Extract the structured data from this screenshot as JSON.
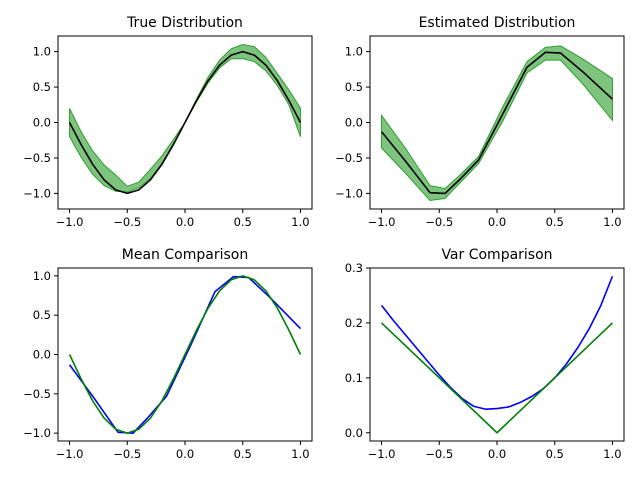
{
  "chart_data": [
    {
      "id": "true-distribution",
      "type": "line",
      "title": "True Distribution",
      "xlabel": "",
      "ylabel": "",
      "xlim": [
        -1.1,
        1.1
      ],
      "ylim": [
        -1.22,
        1.22
      ],
      "xticks": [
        -1.0,
        -0.5,
        0.0,
        0.5,
        1.0
      ],
      "yticks": [
        -1.0,
        -0.5,
        0.0,
        0.5,
        1.0
      ],
      "xtick_labels": [
        "−1.0",
        "−0.5",
        "0.0",
        "0.5",
        "1.0"
      ],
      "ytick_labels": [
        "−1.0",
        "−0.5",
        "0.0",
        "0.5",
        "1.0"
      ],
      "grid": false,
      "band": {
        "color": "#2e9e2e",
        "x": [
          -1.0,
          -0.9,
          -0.8,
          -0.7,
          -0.6,
          -0.5,
          -0.4,
          -0.3,
          -0.2,
          -0.1,
          0.0,
          0.1,
          0.2,
          0.3,
          0.4,
          0.5,
          0.6,
          0.7,
          0.8,
          0.9,
          1.0
        ],
        "lower": [
          -0.2,
          -0.49,
          -0.73,
          -0.89,
          -0.97,
          -0.98,
          -0.92,
          -0.79,
          -0.58,
          -0.3,
          0.0,
          0.29,
          0.56,
          0.77,
          0.9,
          0.9,
          0.86,
          0.73,
          0.52,
          0.25,
          -0.2
        ],
        "upper": [
          0.2,
          -0.13,
          -0.4,
          -0.6,
          -0.74,
          -0.9,
          -0.84,
          -0.66,
          -0.47,
          -0.24,
          0.0,
          0.33,
          0.64,
          0.88,
          1.04,
          1.1,
          1.07,
          0.92,
          0.69,
          0.46,
          0.2
        ]
      },
      "series": [
        {
          "color": "#000000",
          "x": [
            -1.0,
            -0.9,
            -0.8,
            -0.7,
            -0.6,
            -0.5,
            -0.4,
            -0.3,
            -0.2,
            -0.1,
            0.0,
            0.1,
            0.2,
            0.3,
            0.4,
            0.5,
            0.6,
            0.7,
            0.8,
            0.9,
            1.0
          ],
          "y": [
            0.0,
            -0.31,
            -0.59,
            -0.81,
            -0.95,
            -1.0,
            -0.95,
            -0.81,
            -0.59,
            -0.31,
            0.0,
            0.31,
            0.59,
            0.81,
            0.95,
            1.0,
            0.95,
            0.81,
            0.59,
            0.31,
            0.0
          ]
        }
      ]
    },
    {
      "id": "estimated-distribution",
      "type": "line",
      "title": "Estimated Distribution",
      "xlabel": "",
      "ylabel": "",
      "xlim": [
        -1.1,
        1.1
      ],
      "ylim": [
        -1.22,
        1.22
      ],
      "xticks": [
        -1.0,
        -0.5,
        0.0,
        0.5,
        1.0
      ],
      "yticks": [
        -1.0,
        -0.5,
        0.0,
        0.5,
        1.0
      ],
      "xtick_labels": [
        "−1.0",
        "−0.5",
        "0.0",
        "0.5",
        "1.0"
      ],
      "ytick_labels": [
        "−1.0",
        "−0.5",
        "0.0",
        "0.5",
        "1.0"
      ],
      "grid": false,
      "band": {
        "color": "#2e9e2e",
        "x": [
          -1.0,
          -0.79,
          -0.58,
          -0.45,
          -0.32,
          -0.16,
          0.05,
          0.26,
          0.42,
          0.55,
          0.74,
          1.0
        ],
        "lower": [
          -0.36,
          -0.72,
          -1.1,
          -1.07,
          -0.85,
          -0.58,
          0.02,
          0.7,
          0.88,
          0.88,
          0.55,
          0.03
        ],
        "upper": [
          0.1,
          -0.37,
          -0.89,
          -0.93,
          -0.74,
          -0.48,
          0.22,
          0.86,
          1.06,
          1.08,
          0.9,
          0.62
        ]
      },
      "series": [
        {
          "color": "#000000",
          "x": [
            -1.0,
            -0.79,
            -0.58,
            -0.45,
            -0.32,
            -0.16,
            0.05,
            0.26,
            0.42,
            0.55,
            0.74,
            1.0
          ],
          "y": [
            -0.13,
            -0.55,
            -0.99,
            -1.0,
            -0.8,
            -0.53,
            0.12,
            0.78,
            0.99,
            0.98,
            0.72,
            0.33
          ]
        }
      ]
    },
    {
      "id": "mean-comparison",
      "type": "line",
      "title": "Mean Comparison",
      "xlabel": "",
      "ylabel": "",
      "xlim": [
        -1.1,
        1.1
      ],
      "ylim": [
        -1.1,
        1.1
      ],
      "xticks": [
        -1.0,
        -0.5,
        0.0,
        0.5,
        1.0
      ],
      "yticks": [
        -1.0,
        -0.5,
        0.0,
        0.5,
        1.0
      ],
      "xtick_labels": [
        "−1.0",
        "−0.5",
        "0.0",
        "0.5",
        "1.0"
      ],
      "ytick_labels": [
        "−1.0",
        "−0.5",
        "0.0",
        "0.5",
        "1.0"
      ],
      "grid": false,
      "series": [
        {
          "color": "#0000ff",
          "x": [
            -1.0,
            -0.79,
            -0.58,
            -0.45,
            -0.32,
            -0.16,
            0.05,
            0.26,
            0.42,
            0.55,
            0.74,
            1.0
          ],
          "y": [
            -0.13,
            -0.55,
            -0.99,
            -1.0,
            -0.8,
            -0.53,
            0.12,
            0.8,
            0.99,
            0.98,
            0.72,
            0.33
          ]
        },
        {
          "color": "#008000",
          "x": [
            -1.0,
            -0.9,
            -0.8,
            -0.7,
            -0.6,
            -0.5,
            -0.4,
            -0.3,
            -0.2,
            -0.1,
            0.0,
            0.1,
            0.2,
            0.3,
            0.4,
            0.5,
            0.6,
            0.7,
            0.8,
            0.9,
            1.0
          ],
          "y": [
            0.0,
            -0.31,
            -0.59,
            -0.81,
            -0.95,
            -1.0,
            -0.95,
            -0.81,
            -0.59,
            -0.31,
            0.0,
            0.31,
            0.59,
            0.81,
            0.95,
            1.0,
            0.95,
            0.81,
            0.59,
            0.31,
            0.0
          ]
        }
      ]
    },
    {
      "id": "var-comparison",
      "type": "line",
      "title": "Var Comparison",
      "xlabel": "",
      "ylabel": "",
      "xlim": [
        -1.1,
        1.1
      ],
      "ylim": [
        -0.015,
        0.3
      ],
      "xticks": [
        -1.0,
        -0.5,
        0.0,
        0.5,
        1.0
      ],
      "yticks": [
        0.0,
        0.1,
        0.2,
        0.3
      ],
      "xtick_labels": [
        "−1.0",
        "−0.5",
        "0.0",
        "0.5",
        "1.0"
      ],
      "ytick_labels": [
        "0.0",
        "0.1",
        "0.2",
        "0.3"
      ],
      "grid": false,
      "series": [
        {
          "color": "#0000ff",
          "x": [
            -1.0,
            -0.9,
            -0.8,
            -0.7,
            -0.6,
            -0.5,
            -0.4,
            -0.3,
            -0.2,
            -0.1,
            0.0,
            0.1,
            0.2,
            0.3,
            0.4,
            0.5,
            0.6,
            0.7,
            0.8,
            0.9,
            1.0
          ],
          "y": [
            0.232,
            0.205,
            0.18,
            0.155,
            0.13,
            0.105,
            0.082,
            0.062,
            0.048,
            0.043,
            0.044,
            0.047,
            0.055,
            0.066,
            0.08,
            0.1,
            0.125,
            0.155,
            0.19,
            0.232,
            0.285
          ]
        },
        {
          "color": "#008000",
          "x": [
            -1.0,
            0.0,
            1.0
          ],
          "y": [
            0.2,
            0.0,
            0.2
          ]
        }
      ]
    }
  ]
}
